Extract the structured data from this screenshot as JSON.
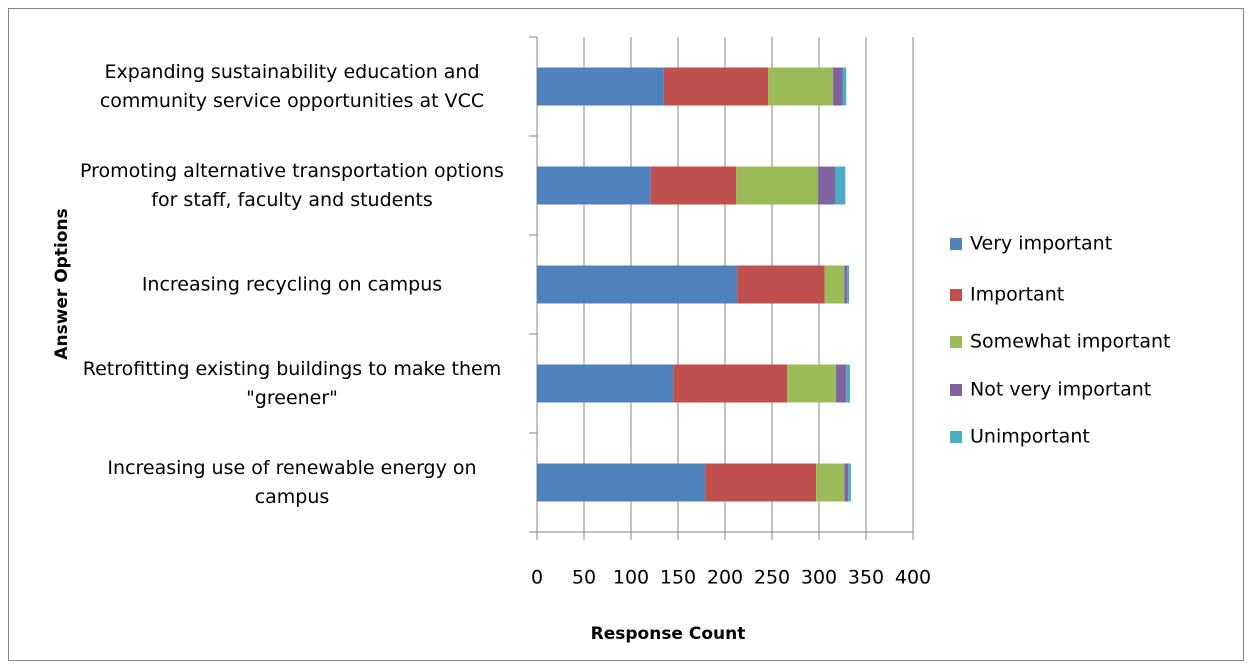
{
  "chart_data": {
    "type": "stacked-bar-horizontal",
    "categories": [
      "Expanding sustainability education and community service opportunities at VCC",
      "Promoting alternative transportation options for staff, faculty and students",
      "Increasing recycling on campus",
      "Retrofitting existing buildings to make them \"greener\"",
      "Increasing use of renewable energy on campus"
    ],
    "series": [
      {
        "name": "Very important",
        "color": "#4f81bd",
        "values": [
          135,
          121,
          213,
          145,
          179
        ]
      },
      {
        "name": "Important",
        "color": "#c0504d",
        "values": [
          111,
          91,
          93,
          121,
          118
        ]
      },
      {
        "name": "Somewhat important",
        "color": "#9bbb59",
        "values": [
          69,
          87,
          21,
          52,
          30
        ]
      },
      {
        "name": "Not very important",
        "color": "#8064a2",
        "values": [
          10,
          18,
          3,
          11,
          4
        ]
      },
      {
        "name": "Unimportant",
        "color": "#4bacc6",
        "values": [
          4,
          11,
          2,
          4,
          3
        ]
      }
    ],
    "xlabel": "Response Count",
    "ylabel": "Answer Options",
    "xlim": [
      0,
      400
    ],
    "xticks": [
      0,
      50,
      100,
      150,
      200,
      250,
      300,
      350,
      400
    ],
    "grid": true,
    "legend": "right"
  }
}
